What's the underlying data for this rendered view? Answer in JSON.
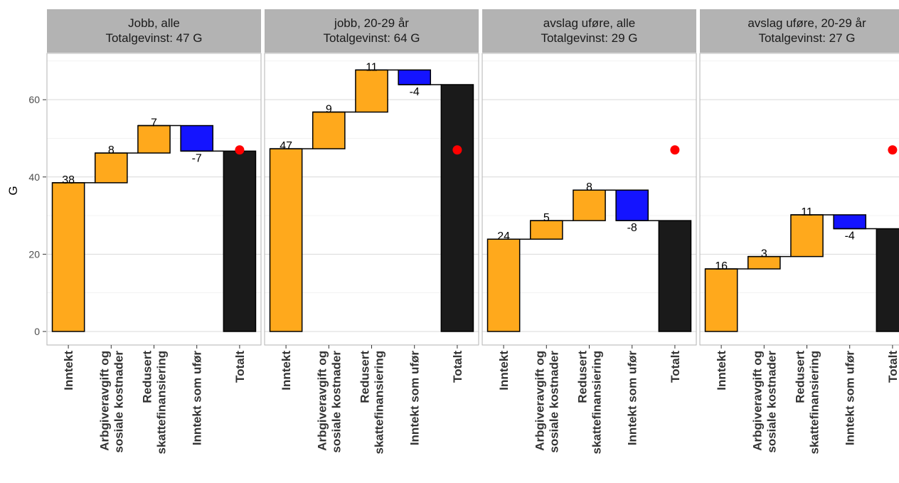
{
  "chart_data": {
    "type": "bar",
    "subtype": "waterfall",
    "ylabel": "G",
    "xlabel": "",
    "ylim": [
      -3.5,
      72
    ],
    "yticks": [
      0,
      20,
      40,
      60
    ],
    "categories": [
      [
        "Inntekt"
      ],
      [
        "Arbgiveravgift og",
        "sosiale kostnader"
      ],
      [
        "Redusert",
        "skattefinansiering"
      ],
      [
        "Inntekt som ufør"
      ],
      [
        "Totalt"
      ]
    ],
    "reference_point": {
      "category": "Totalt",
      "value": 47,
      "color": "#ff0000"
    },
    "colors": {
      "positive": "#ffa91c",
      "negative": "#1414ff",
      "total": "#1a1a1a"
    },
    "panels": [
      {
        "title": [
          "Jobb, alle",
          "Totalgevinst: 47 G"
        ],
        "steps": [
          {
            "value": 38.5,
            "label": "38"
          },
          {
            "value": 7.7,
            "label": "8"
          },
          {
            "value": 7.1,
            "label": "7"
          },
          {
            "value": -6.6,
            "label": "-7"
          }
        ],
        "total": 46.7
      },
      {
        "title": [
          "jobb, 20-29 år",
          "Totalgevinst: 64 G"
        ],
        "steps": [
          {
            "value": 47.3,
            "label": "47"
          },
          {
            "value": 9.5,
            "label": "9"
          },
          {
            "value": 10.9,
            "label": "11"
          },
          {
            "value": -3.8,
            "label": "-4"
          }
        ],
        "total": 63.9
      },
      {
        "title": [
          "avslag uføre, alle",
          "Totalgevinst: 29 G"
        ],
        "steps": [
          {
            "value": 23.9,
            "label": "24"
          },
          {
            "value": 4.8,
            "label": "5"
          },
          {
            "value": 7.9,
            "label": "8"
          },
          {
            "value": -7.9,
            "label": "-8"
          }
        ],
        "total": 28.7
      },
      {
        "title": [
          "avslag uføre, 20-29 år",
          "Totalgevinst: 27 G"
        ],
        "steps": [
          {
            "value": 16.2,
            "label": "16"
          },
          {
            "value": 3.2,
            "label": "3"
          },
          {
            "value": 10.8,
            "label": "11"
          },
          {
            "value": -3.6,
            "label": "-4"
          }
        ],
        "total": 26.6
      }
    ]
  }
}
